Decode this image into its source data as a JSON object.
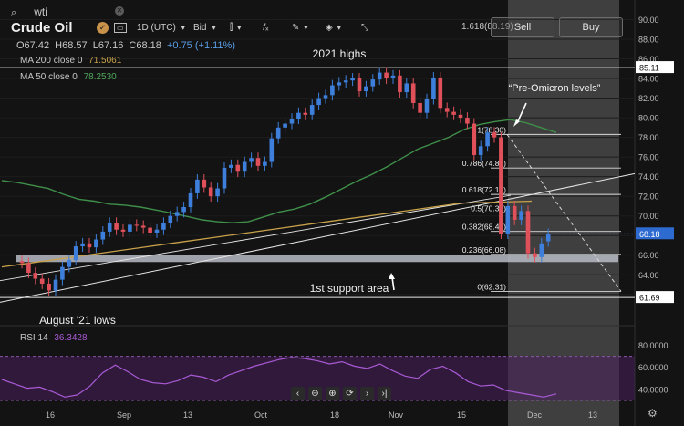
{
  "search": {
    "value": "wti"
  },
  "instrument": {
    "name": "Crude Oil",
    "timeframe": "1D (UTC)",
    "price_type": "Bid"
  },
  "ohlc": {
    "o": "O67.42",
    "h": "H68.57",
    "l": "L67.16",
    "c": "C68.18",
    "chg": "+0.75 (+1.11%)"
  },
  "indicators": {
    "ma200": {
      "label": "MA 200 close 0",
      "value": "71.5061",
      "color": "#c8a24a"
    },
    "ma50": {
      "label": "MA 50 close 0",
      "value": "78.2530",
      "color": "#3f8f4a"
    },
    "rsi": {
      "label": "RSI 14",
      "value": "36.3428",
      "color": "#9b4fc2"
    }
  },
  "trade": {
    "sell": "Sell",
    "buy": "Buy",
    "fib_top": "1.618(88.19)"
  },
  "icons": {
    "search": "search-icon",
    "clear": "close-icon",
    "broker": "broker-logo-icon",
    "compare": "compare-icon",
    "candles": "candlestick-icon",
    "indicators": "indicators-icon",
    "draw": "pencil-icon",
    "layers": "layers-icon",
    "fullscreen": "fullscreen-icon",
    "settings": "gear-icon"
  },
  "nav": {
    "prev": "‹",
    "zoom_out": "⊖",
    "zoom_in": "⊕",
    "reset": "⟳",
    "next": "›",
    "end": "›|"
  },
  "chart_data": {
    "type": "candlestick",
    "price_axis": {
      "ticks": [
        "90.00",
        "88.00",
        "86.00",
        "84.00",
        "82.00",
        "80.00",
        "78.00",
        "76.00",
        "74.00",
        "72.00",
        "70.00",
        "68.00",
        "66.00",
        "64.00",
        "62.00"
      ],
      "ylim": [
        60.4,
        90.6
      ],
      "current": "68.18",
      "highs_level": "85.11",
      "lows_level": "61.69"
    },
    "rsi_axis": {
      "ticks": [
        "80.0000",
        "60.0000",
        "40.0000"
      ],
      "ylim": [
        25,
        87
      ],
      "overbought": 70,
      "oversold": 30
    },
    "x_labels": [
      "16",
      "Sep",
      "13",
      "Oct",
      "18",
      "Nov",
      "15",
      "Dec",
      "13"
    ],
    "annotations": {
      "highs": "2021 highs",
      "omicron": "“Pre-Omicron levels”",
      "support": "1st support area",
      "lows": "August '21 lows"
    },
    "fib_levels": [
      {
        "label": "1(78.30)",
        "value": 78.3
      },
      {
        "label": "0.786(74.88)",
        "value": 74.88
      },
      {
        "label": "0.618(72.19)",
        "value": 72.19
      },
      {
        "label": "0.5(70.30)",
        "value": 70.3
      },
      {
        "label": "0.382(68.42)",
        "value": 68.42
      },
      {
        "label": "0.236(66.08)",
        "value": 66.08
      },
      {
        "label": "0(62.31)",
        "value": 62.31
      }
    ],
    "support_zone": [
      65.3,
      66.0
    ],
    "candles": [
      [
        65.4,
        65.2
      ],
      [
        65.2,
        64.2
      ],
      [
        64.2,
        63.6
      ],
      [
        63.6,
        63.1
      ],
      [
        63.1,
        62.4
      ],
      [
        62.4,
        63.5
      ],
      [
        63.5,
        64.8
      ],
      [
        64.8,
        65.5
      ],
      [
        65.5,
        66.9
      ],
      [
        66.9,
        67.2
      ],
      [
        67.2,
        66.8
      ],
      [
        66.8,
        67.6
      ],
      [
        67.6,
        68.4
      ],
      [
        68.4,
        69.3
      ],
      [
        69.3,
        68.6
      ],
      [
        68.6,
        68.4
      ],
      [
        68.4,
        69.1
      ],
      [
        69.1,
        69.0
      ],
      [
        69.0,
        68.8
      ],
      [
        68.8,
        68.3
      ],
      [
        68.3,
        68.6
      ],
      [
        68.6,
        69.3
      ],
      [
        69.3,
        70.0
      ],
      [
        70.0,
        70.4
      ],
      [
        70.4,
        70.9
      ],
      [
        70.9,
        72.3
      ],
      [
        72.3,
        73.7
      ],
      [
        73.7,
        72.9
      ],
      [
        72.9,
        72.0
      ],
      [
        72.0,
        72.8
      ],
      [
        72.8,
        74.9
      ],
      [
        74.9,
        75.2
      ],
      [
        75.2,
        74.5
      ],
      [
        74.5,
        75.5
      ],
      [
        75.5,
        75.9
      ],
      [
        75.9,
        75.1
      ],
      [
        75.1,
        75.5
      ],
      [
        75.5,
        77.9
      ],
      [
        77.9,
        79.0
      ],
      [
        79.0,
        79.4
      ],
      [
        79.4,
        79.9
      ],
      [
        79.9,
        80.5
      ],
      [
        80.5,
        80.3
      ],
      [
        80.3,
        81.3
      ],
      [
        81.3,
        82.0
      ],
      [
        82.0,
        82.3
      ],
      [
        82.3,
        83.3
      ],
      [
        83.3,
        83.6
      ],
      [
        83.6,
        83.8
      ],
      [
        83.8,
        84.0
      ],
      [
        84.0,
        82.7
      ],
      [
        82.7,
        83.2
      ],
      [
        83.2,
        83.9
      ],
      [
        83.9,
        84.6
      ],
      [
        84.6,
        84.0
      ],
      [
        84.0,
        84.3
      ],
      [
        84.3,
        82.6
      ],
      [
        82.6,
        83.5
      ],
      [
        83.5,
        81.5
      ],
      [
        81.5,
        80.5
      ],
      [
        80.5,
        81.9
      ],
      [
        81.9,
        84.1
      ],
      [
        84.1,
        81.0
      ],
      [
        81.0,
        80.6
      ],
      [
        80.6,
        80.3
      ],
      [
        80.3,
        80.0
      ],
      [
        80.0,
        79.4
      ],
      [
        79.4,
        76.2
      ],
      [
        76.2,
        77.1
      ],
      [
        77.1,
        78.5
      ],
      [
        78.5,
        78.0
      ],
      [
        78.0,
        68.2
      ],
      [
        68.2,
        71.0
      ],
      [
        71.0,
        69.6
      ],
      [
        69.6,
        70.5
      ],
      [
        70.5,
        66.2
      ],
      [
        66.2,
        65.8
      ],
      [
        65.8,
        67.2
      ],
      [
        67.42,
        68.18
      ]
    ],
    "ma50": [
      73.6,
      73.4,
      73.1,
      72.8,
      72.2,
      71.7,
      71.5,
      71.2,
      71.1,
      70.9,
      70.6,
      70.3,
      69.95,
      69.6,
      69.4,
      69.3,
      69.4,
      69.9,
      70.4,
      70.7,
      71.2,
      71.9,
      72.7,
      73.5,
      74.2,
      75.0,
      75.9,
      76.8,
      77.4,
      78.0,
      78.8,
      79.3,
      79.6,
      79.8,
      79.5,
      79.0,
      78.5
    ],
    "ma200": [
      64.8,
      65.3,
      65.8,
      66.3,
      66.8,
      67.3,
      67.8,
      68.3,
      68.8,
      69.3,
      69.8,
      70.3,
      70.8,
      71.3,
      71.4,
      71.5
    ],
    "rsi": [
      49,
      45,
      41,
      42,
      38,
      33,
      35,
      43,
      55,
      62,
      56,
      49,
      46,
      45,
      48,
      53,
      51,
      47,
      53,
      57,
      61,
      64,
      67,
      69,
      68,
      66,
      63,
      65,
      61,
      59,
      63,
      57,
      52,
      50,
      58,
      61,
      55,
      47,
      43,
      44,
      39,
      37,
      35,
      33,
      36
    ]
  }
}
